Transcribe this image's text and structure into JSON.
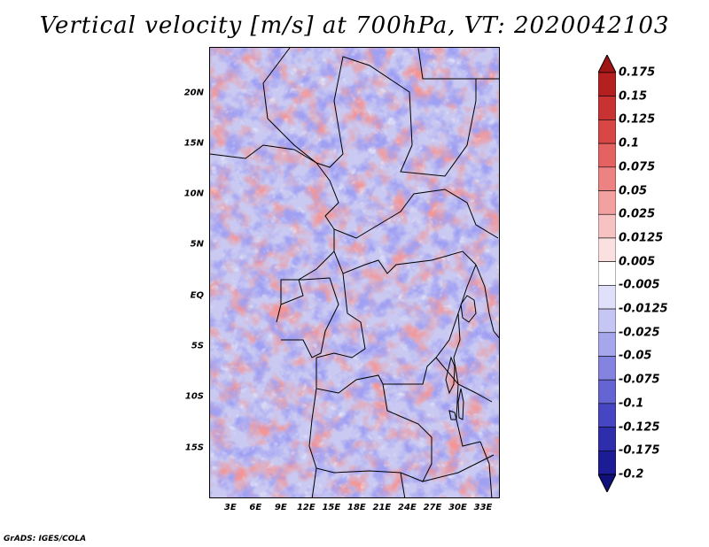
{
  "title": "Vertical velocity [m/s] at 700hPa, VT: 2020042103",
  "credit": "GrADS: IGES/COLA",
  "map": {
    "lat_labels": [
      "20N",
      "15N",
      "10N",
      "5N",
      "EQ",
      "5S",
      "10S",
      "15S"
    ],
    "lon_labels": [
      "3E",
      "6E",
      "9E",
      "12E",
      "15E",
      "18E",
      "21E",
      "24E",
      "27E",
      "30E",
      "33E"
    ],
    "lat_values": [
      20,
      15,
      10,
      5,
      0,
      -5,
      -10,
      -15
    ],
    "lon_values": [
      3,
      6,
      9,
      12,
      15,
      18,
      21,
      24,
      27,
      30,
      33
    ],
    "lat_range": [
      -20,
      24.5
    ],
    "lon_range": [
      0.5,
      35
    ]
  },
  "colorbar": {
    "labels": [
      "0.175",
      "0.15",
      "0.125",
      "0.1",
      "0.075",
      "0.05",
      "0.025",
      "0.0125",
      "0.005",
      "-0.005",
      "-0.0125",
      "-0.025",
      "-0.05",
      "-0.075",
      "-0.1",
      "-0.125",
      "-0.175",
      "-0.2"
    ],
    "colors": [
      "#a01414",
      "#b42020",
      "#c83232",
      "#d84646",
      "#e46262",
      "#ec8282",
      "#f2a0a0",
      "#f7c2c2",
      "#fbe0e0",
      "#ffffff",
      "#e0e0fb",
      "#c6c6f4",
      "#a6a6ec",
      "#8484e0",
      "#6464d2",
      "#4646c2",
      "#2e2eac",
      "#1c1c96",
      "#10107a"
    ]
  }
}
